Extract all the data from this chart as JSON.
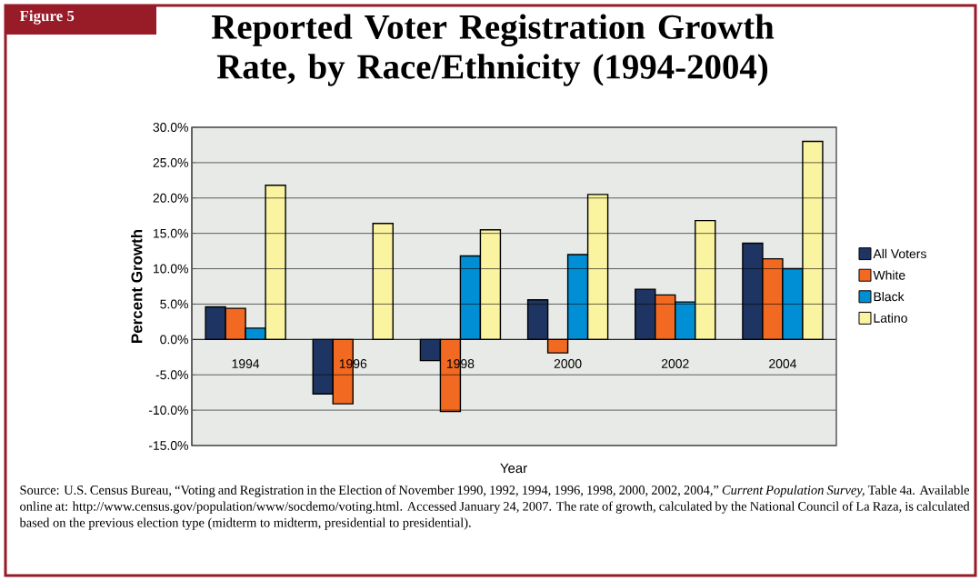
{
  "chart_data": {
    "type": "bar",
    "title": "Reported Voter Registration Growth Rate, by Race/Ethnicity (1994-2004)",
    "xlabel": "Year",
    "ylabel": "Percent Growth",
    "categories": [
      "1994",
      "1996",
      "1998",
      "2000",
      "2002",
      "2004"
    ],
    "series": [
      {
        "name": "All Voters",
        "color": "#1e3563",
        "values": [
          4.6,
          -7.7,
          -3.0,
          5.6,
          7.1,
          13.6
        ]
      },
      {
        "name": "White",
        "color": "#f26a21",
        "values": [
          4.4,
          -9.1,
          -10.2,
          -1.9,
          6.3,
          11.4
        ]
      },
      {
        "name": "Black",
        "color": "#008fd5",
        "values": [
          1.6,
          null,
          11.8,
          12.0,
          5.3,
          10.0
        ]
      },
      {
        "name": "Latino",
        "color": "#faf3a0",
        "values": [
          21.8,
          16.4,
          15.5,
          20.5,
          16.8,
          28.0
        ]
      }
    ],
    "ylim": [
      -15,
      30
    ],
    "yticks": [
      {
        "value": -15,
        "label": "-15.0%"
      },
      {
        "value": -10,
        "label": "-10.0%"
      },
      {
        "value": -5,
        "label": "-5.0%"
      },
      {
        "value": 0,
        "label": "0.0%"
      },
      {
        "value": 5,
        "label": "5.0%"
      },
      {
        "value": 10,
        "label": "10.0%"
      },
      {
        "value": 15,
        "label": "15.0%"
      },
      {
        "value": 20,
        "label": "20.0%"
      },
      {
        "value": 25,
        "label": "25.0%"
      },
      {
        "value": 30,
        "label": "30.0%"
      }
    ],
    "grid": "y",
    "legend": "right",
    "annotations": [
      "Figure 5",
      "Source: U.S. Census Bureau, “Voting and Registration in the Election of November 1990, 1992, 1994, 1996, 1998, 2000, 2002, 2004,” *Current Population Survey,* Table 4a.  Available online at: http://www.census.gov/population/www/socdemo/voting.html.  Accessed January 24, 2007.  The rate of growth, calculated by the National Council of La Raza, is calculated based on the previous election type (midterm to midterm, presidential to presidential)."
    ]
  }
}
